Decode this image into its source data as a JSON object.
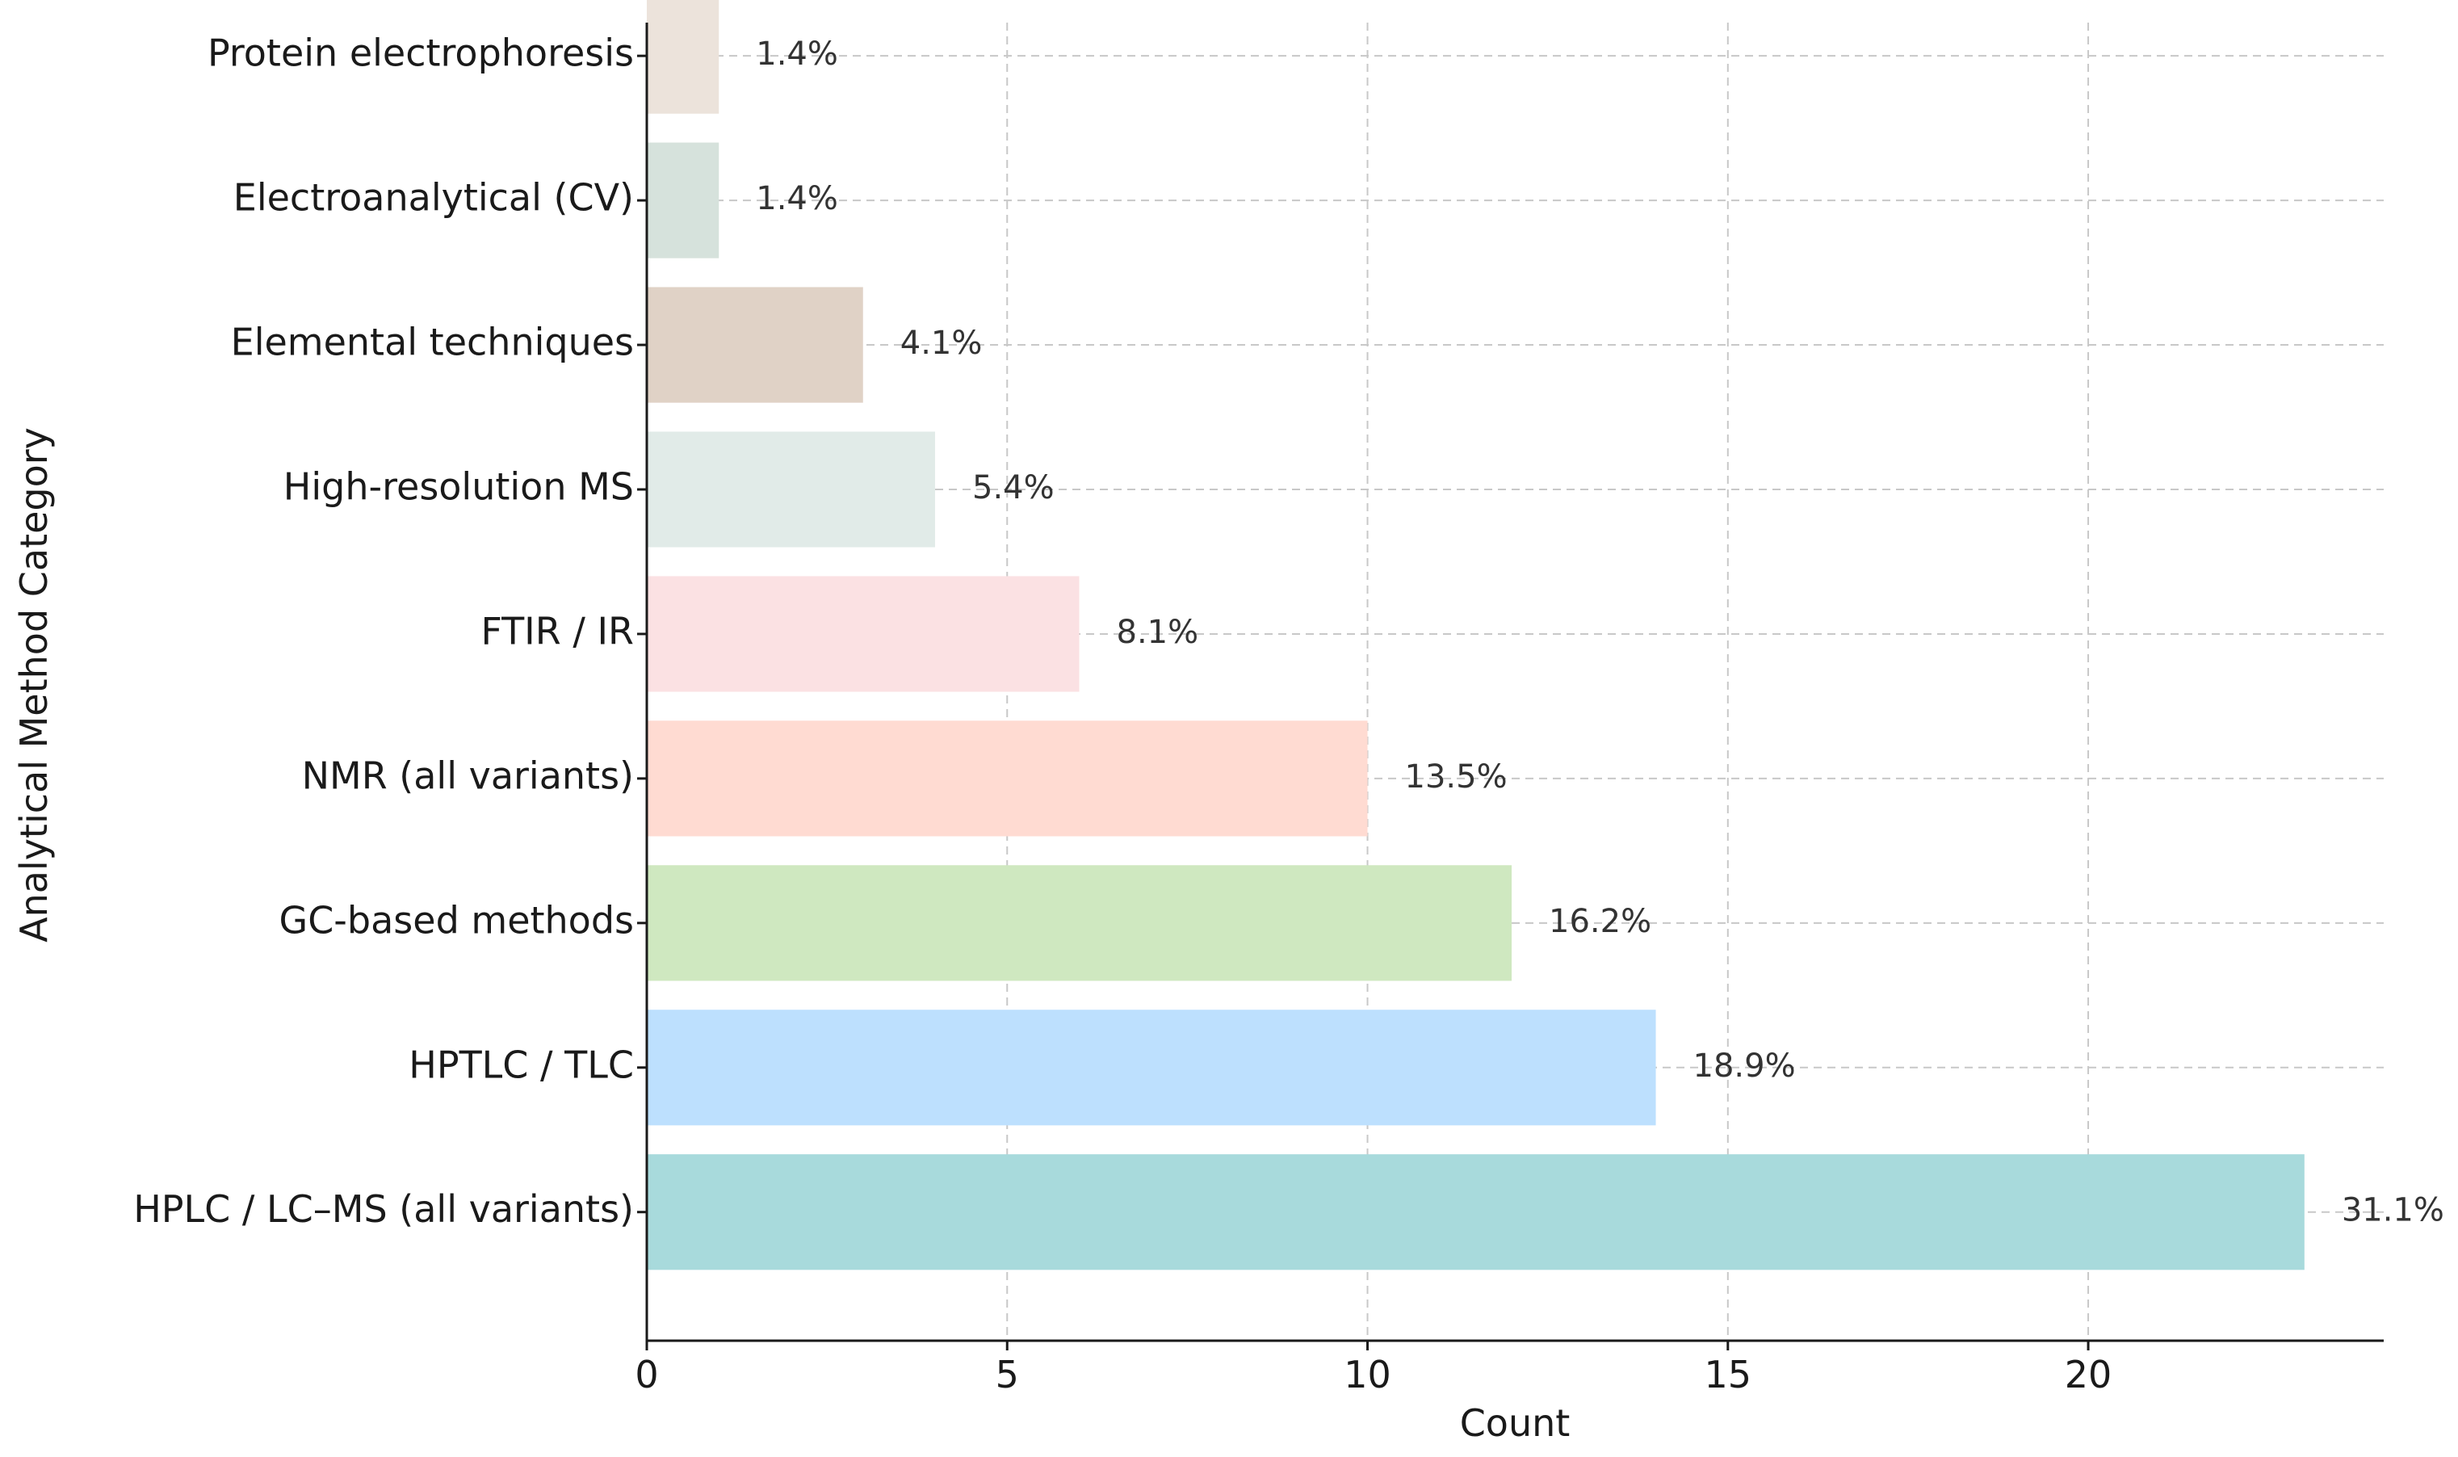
{
  "chart_data": {
    "type": "bar",
    "orientation": "horizontal",
    "title": "",
    "xlabel": "Count",
    "ylabel": "Analytical Method Category",
    "xlim": [
      0,
      24.1
    ],
    "xticks": [
      0,
      5,
      10,
      15,
      20
    ],
    "grid": true,
    "categories": [
      "HPLC / LC–MS (all variants)",
      "HPTLC / TLC",
      "GC-based methods",
      "NMR (all variants)",
      "FTIR / IR",
      "High-resolution MS",
      "Elemental techniques",
      "Electroanalytical (CV)",
      "Protein electrophoresis"
    ],
    "values": [
      23,
      14,
      12,
      10,
      6,
      4,
      3,
      1,
      1
    ],
    "labels": [
      "31.1%",
      "18.9%",
      "16.2%",
      "13.5%",
      "8.1%",
      "5.4%",
      "4.1%",
      "1.4%",
      "1.4%"
    ],
    "colors": [
      "#a8dadc",
      "#bde0fe",
      "#cfe8c0",
      "#ffdbd2",
      "#fbe1e3",
      "#e1ebe8",
      "#e0d2c6",
      "#d6e2dc",
      "#ece3db"
    ]
  }
}
